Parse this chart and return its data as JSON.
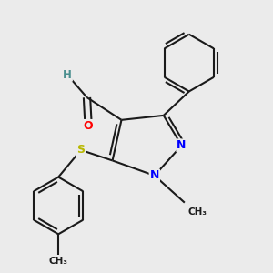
{
  "bg_color": "#ebebeb",
  "bond_color": "#1a1a1a",
  "bond_width": 1.5,
  "atom_colors": {
    "O": "#ff0000",
    "N": "#0000ff",
    "S": "#b8b800",
    "C": "#1a1a1a",
    "H": "#4a8f8f"
  },
  "font_size_atom": 9,
  "doff_ring": 0.012,
  "doff_exo": 0.01
}
